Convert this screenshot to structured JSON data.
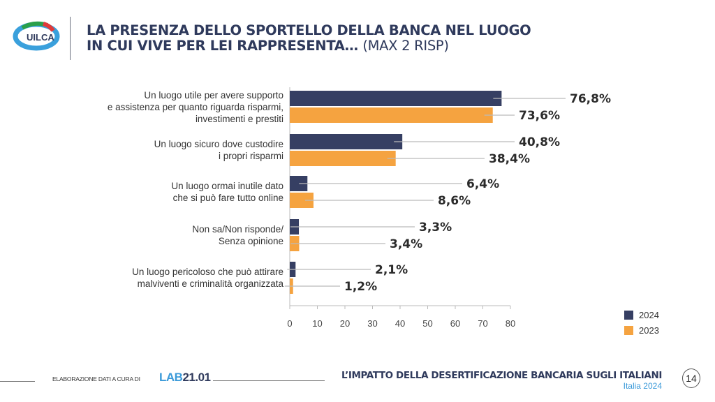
{
  "header": {
    "title_line1": "LA PRESENZA DELLO SPORTELLO DELLA BANCA NEL LUOGO",
    "title_line2": "IN CUI VIVE PER LEI RAPPRESENTA…",
    "title_note": "(MAX 2 RISP)",
    "logo_text": "UILCA"
  },
  "chart_data": {
    "type": "bar",
    "orientation": "horizontal",
    "categories": [
      [
        "Un luogo utile per avere supporto",
        "e assistenza per quanto riguarda risparmi,",
        "investimenti e prestiti"
      ],
      [
        "Un luogo sicuro dove custodire",
        "i propri risparmi"
      ],
      [
        "Un luogo ormai inutile dato",
        "che si può fare tutto online"
      ],
      [
        "Non sa/Non risponde/",
        "Senza opinione"
      ],
      [
        "Un luogo pericoloso che può attirare",
        "malviventi e criminalità organizzata"
      ]
    ],
    "series": [
      {
        "name": "2024",
        "color": "#363f63",
        "values": [
          76.8,
          40.8,
          6.4,
          3.3,
          2.1
        ],
        "labels": [
          "76,8%",
          "40,8%",
          "6,4%",
          "3,3%",
          "2,1%"
        ]
      },
      {
        "name": "2023",
        "color": "#f5a340",
        "values": [
          73.6,
          38.4,
          8.6,
          3.4,
          1.2
        ],
        "labels": [
          "73,6%",
          "38,4%",
          "8,6%",
          "3,4%",
          "1,2%"
        ]
      }
    ],
    "xlim": [
      0,
      80
    ],
    "xticks": [
      "0",
      "10",
      "20",
      "30",
      "40",
      "50",
      "60",
      "70",
      "80"
    ],
    "grid": false,
    "legend": "bottom-right"
  },
  "footer": {
    "credit": "ELABORAZIONE DATI A CURA DI",
    "lab_a": "LAB",
    "lab_b": "21.01",
    "title": "L’IMPATTO DELLA DESERTIFICAZIONE BANCARIA SUGLI ITALIANI",
    "subtitle": "Italia 2024",
    "page": "14"
  }
}
